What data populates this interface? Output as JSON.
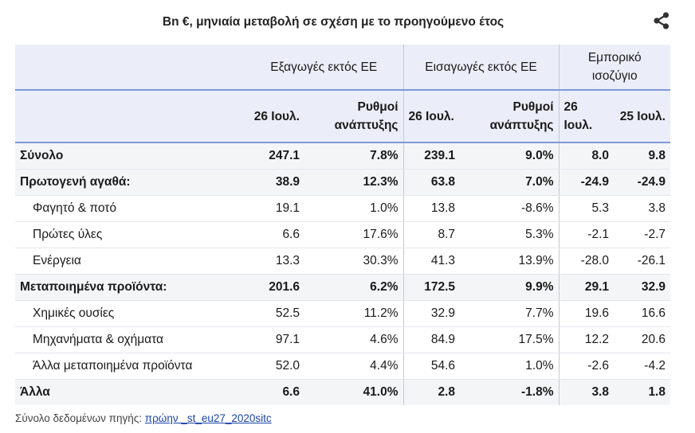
{
  "title": "Bn €, μηνιαία μεταβολή σε σχέση με το προηγούμενο έτος",
  "share_icon": "share-icon",
  "headers": {
    "group_exports": "Εξαγωγές εκτός ΕΕ",
    "group_imports": "Εισαγωγές εκτός ΕΕ",
    "group_balance_line1": "Εμπορικό",
    "group_balance_line2": "ισοζύγιο",
    "exp_month": "26 Ιουλ.",
    "exp_growth_line1": "Ρυθμοί",
    "exp_growth_line2": "ανάπτυξης",
    "imp_month": "26 Ιουλ.",
    "imp_growth_line1": "Ρυθμοί",
    "imp_growth_line2": "ανάπτυξης",
    "bal_month1": "26 Ιουλ.",
    "bal_month2": "25 Ιουλ."
  },
  "rows": [
    {
      "label": "Σύνολο",
      "exp": "247.1",
      "exp_g": "7.8%",
      "imp": "239.1",
      "imp_g": "9.0%",
      "bal26": "8.0",
      "bal25": "9.8"
    },
    {
      "label": "Πρωτογενή αγαθά:",
      "exp": "38.9",
      "exp_g": "12.3%",
      "imp": "63.8",
      "imp_g": "7.0%",
      "bal26": "-24.9",
      "bal25": "-24.9"
    },
    {
      "label": "Φαγητό & ποτό",
      "exp": "19.1",
      "exp_g": "1.0%",
      "imp": "13.8",
      "imp_g": "-8.6%",
      "bal26": "5.3",
      "bal25": "3.8"
    },
    {
      "label": "Πρώτες ύλες",
      "exp": "6.6",
      "exp_g": "17.6%",
      "imp": "8.7",
      "imp_g": "5.3%",
      "bal26": "-2.1",
      "bal25": "-2.7"
    },
    {
      "label": "Ενέργεια",
      "exp": "13.3",
      "exp_g": "30.3%",
      "imp": "41.3",
      "imp_g": "13.9%",
      "bal26": "-28.0",
      "bal25": "-26.1"
    },
    {
      "label": "Μεταποιημένα προϊόντα:",
      "exp": "201.6",
      "exp_g": "6.2%",
      "imp": "172.5",
      "imp_g": "9.9%",
      "bal26": "29.1",
      "bal25": "32.9"
    },
    {
      "label": "Χημικές ουσίες",
      "exp": "52.5",
      "exp_g": "11.2%",
      "imp": "32.9",
      "imp_g": "7.7%",
      "bal26": "19.6",
      "bal25": "16.6"
    },
    {
      "label": "Μηχανήματα & οχήματα",
      "exp": "97.1",
      "exp_g": "4.6%",
      "imp": "84.9",
      "imp_g": "17.5%",
      "bal26": "12.2",
      "bal25": "20.6"
    },
    {
      "label": "Άλλα μεταποιημένα προϊόντα",
      "exp": "52.0",
      "exp_g": "4.4%",
      "imp": "54.6",
      "imp_g": "1.0%",
      "bal26": "-2.6",
      "bal25": "-4.2"
    },
    {
      "label": "Άλλα",
      "exp": "6.6",
      "exp_g": "41.0%",
      "imp": "2.8",
      "imp_g": "-1.8%",
      "bal26": "3.8",
      "bal25": "1.8"
    }
  ],
  "source": {
    "label": "Σύνολο δεδομένων πηγής:",
    "link_text": "πρώην _st_eu27_2020sitc"
  }
}
